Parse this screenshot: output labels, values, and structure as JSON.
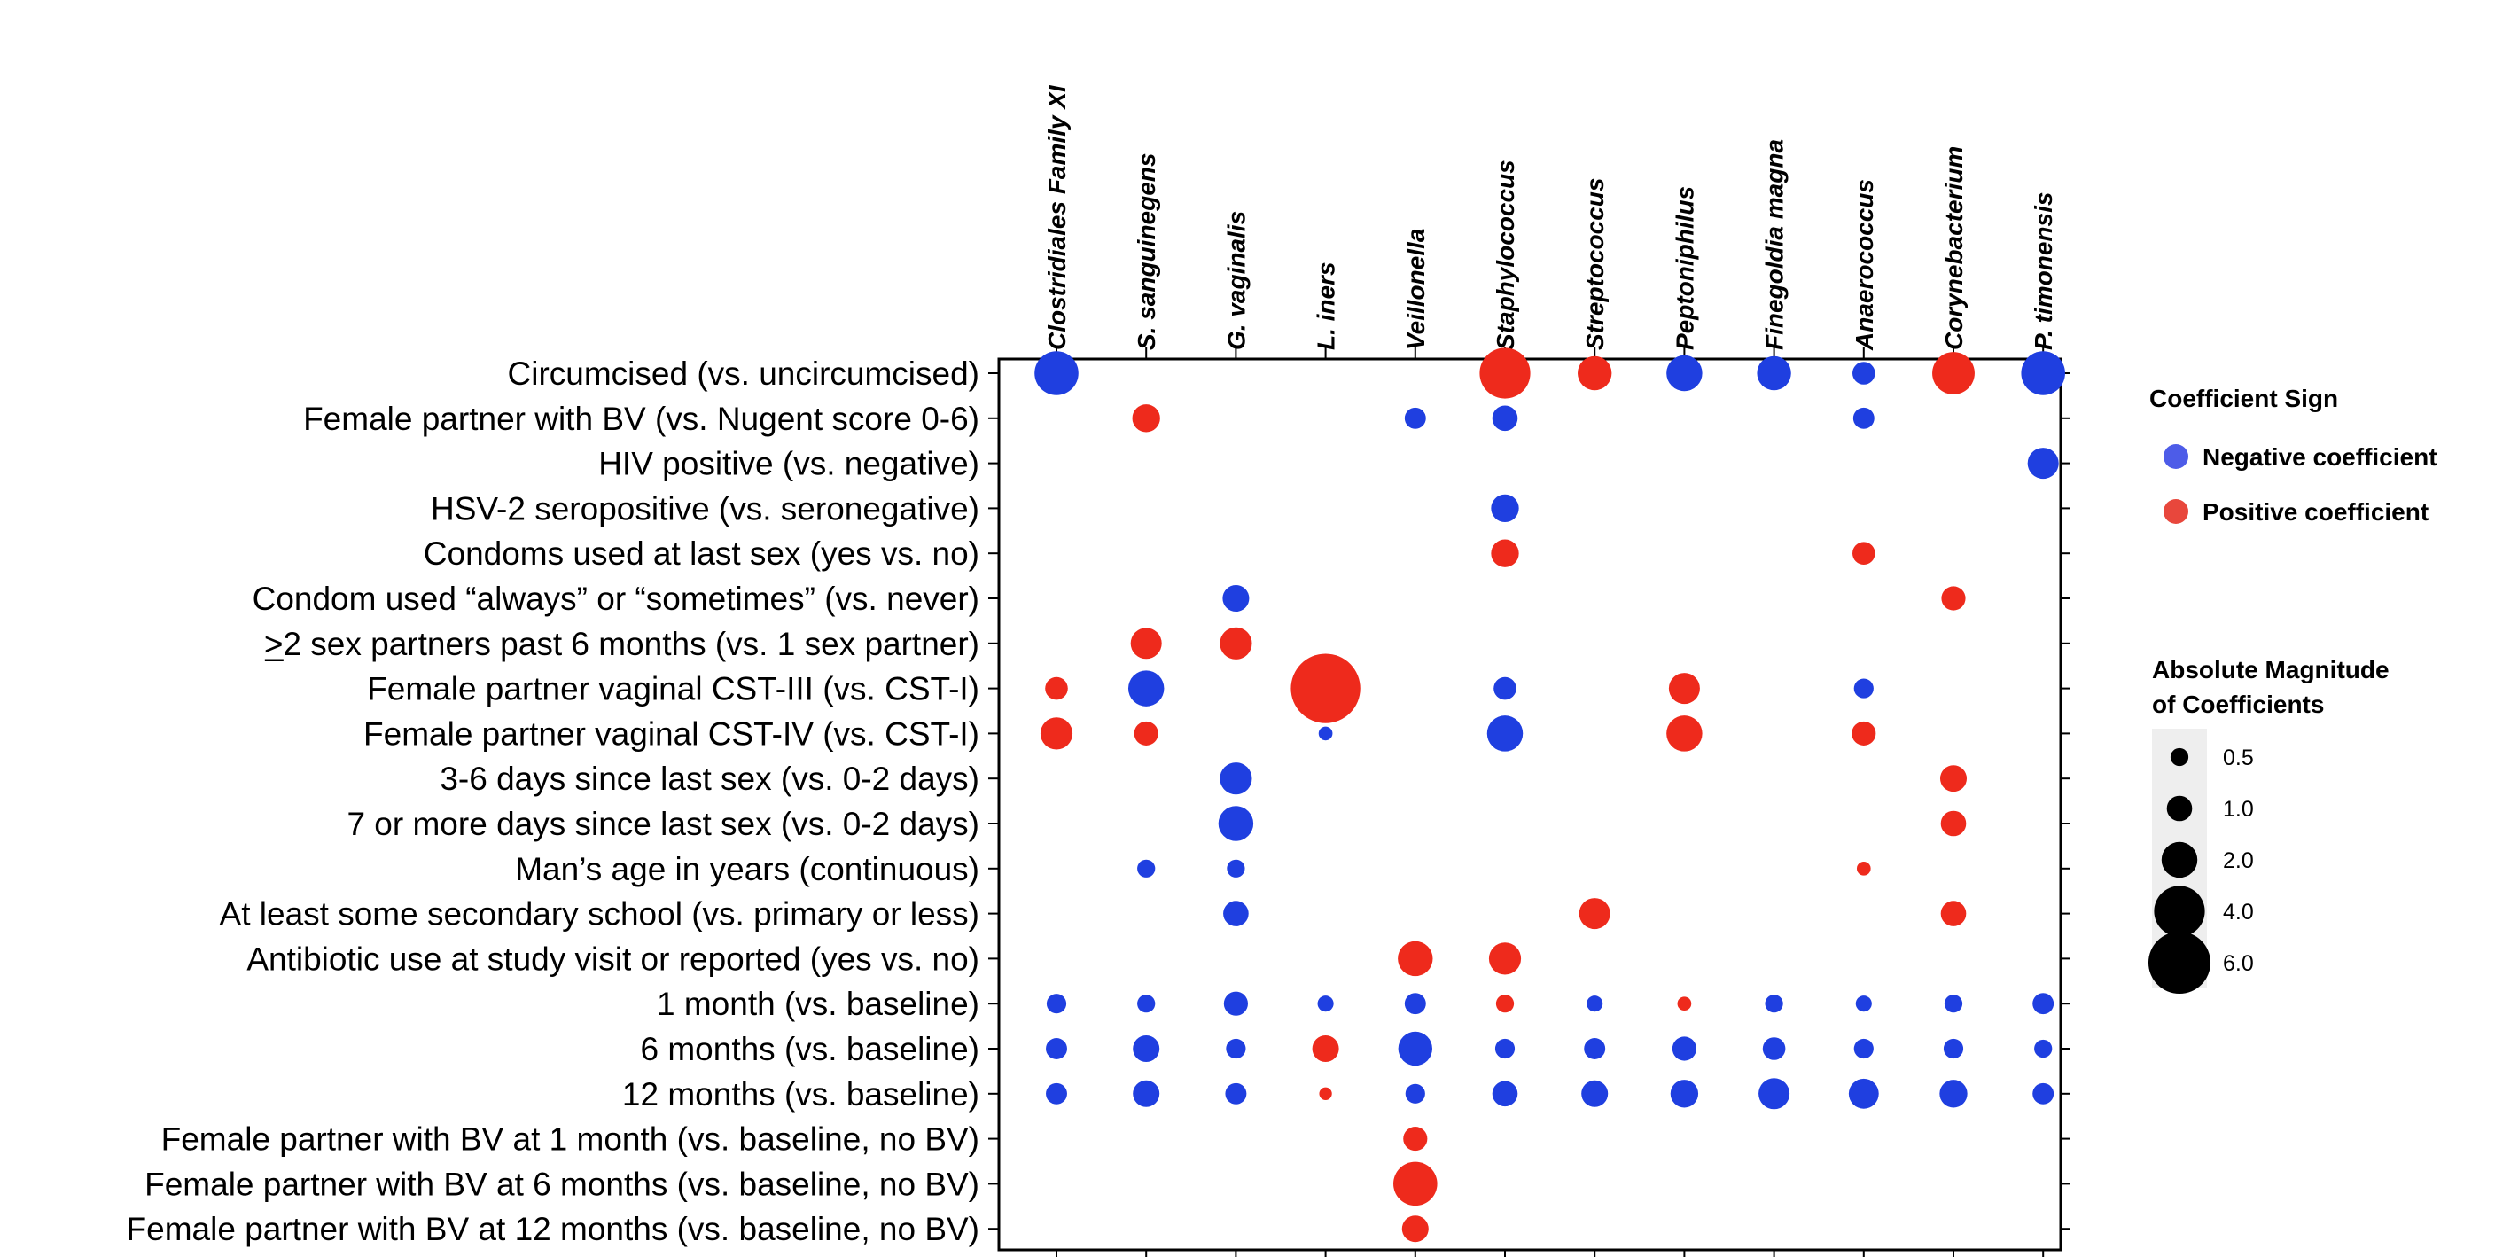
{
  "chart_data": {
    "type": "dot-matrix",
    "columns": [
      "Clostridiales Family XI",
      "S. sanguinegens",
      "G. vaginalis",
      "L. iners",
      "Veillonella",
      "Staphylococcus",
      "Streptococcus",
      "Peptoniphilus",
      "Finegoldia magna",
      "Anaerococcus",
      "Corynebacterium",
      "P. timonensis"
    ],
    "rows": [
      "Circumcised (vs. uncircumcised)",
      "Female partner with BV (vs. Nugent score 0-6)",
      "HIV positive (vs. negative)",
      "HSV-2 seropositive (vs. seronegative)",
      "Condoms used at last sex (yes vs. no)",
      "Condom used “always” or “sometimes” (vs. never)",
      ">2 sex partners past 6 months (vs. 1 sex partner)",
      "Female partner vaginal CST-III (vs. CST-I)",
      "Female partner vaginal CST-IV (vs. CST-I)",
      "3-6 days since last sex (vs. 0-2 days)",
      "7 or more days since last sex (vs. 0-2 days)",
      "Man’s age in years (continuous)",
      "At least some secondary school (vs. primary or less)",
      "Antibiotic use at study visit or reported (yes vs. no)",
      "1 month (vs. baseline)",
      "6 months (vs. baseline)",
      "12 months (vs. baseline)",
      "Female partner with BV at 1 month (vs. baseline, no BV)",
      "Female partner with BV at 6 months (vs. baseline, no BV)",
      "Female partner with BV at 12 months (vs. baseline, no BV)"
    ],
    "points": [
      {
        "row": 0,
        "col": 0,
        "value": -3.0
      },
      {
        "row": 0,
        "col": 5,
        "value": 4.0
      },
      {
        "row": 0,
        "col": 6,
        "value": 1.8
      },
      {
        "row": 0,
        "col": 7,
        "value": -2.0
      },
      {
        "row": 0,
        "col": 8,
        "value": -1.8
      },
      {
        "row": 0,
        "col": 9,
        "value": -0.8
      },
      {
        "row": 0,
        "col": 10,
        "value": 2.8
      },
      {
        "row": 0,
        "col": 11,
        "value": -3.0
      },
      {
        "row": 1,
        "col": 1,
        "value": 1.2
      },
      {
        "row": 1,
        "col": 4,
        "value": -0.7
      },
      {
        "row": 1,
        "col": 5,
        "value": -1.0
      },
      {
        "row": 1,
        "col": 9,
        "value": -0.7
      },
      {
        "row": 2,
        "col": 11,
        "value": -1.5
      },
      {
        "row": 3,
        "col": 5,
        "value": -1.2
      },
      {
        "row": 4,
        "col": 5,
        "value": 1.2
      },
      {
        "row": 4,
        "col": 9,
        "value": 0.8
      },
      {
        "row": 5,
        "col": 2,
        "value": -1.1
      },
      {
        "row": 5,
        "col": 10,
        "value": 0.9
      },
      {
        "row": 6,
        "col": 1,
        "value": 1.5
      },
      {
        "row": 6,
        "col": 2,
        "value": 1.6
      },
      {
        "row": 7,
        "col": 0,
        "value": 0.8
      },
      {
        "row": 7,
        "col": 1,
        "value": -2.0
      },
      {
        "row": 7,
        "col": 3,
        "value": 7.5
      },
      {
        "row": 7,
        "col": 5,
        "value": -0.8
      },
      {
        "row": 7,
        "col": 7,
        "value": 1.5
      },
      {
        "row": 7,
        "col": 9,
        "value": -0.6
      },
      {
        "row": 8,
        "col": 0,
        "value": 1.6
      },
      {
        "row": 8,
        "col": 1,
        "value": 0.9
      },
      {
        "row": 8,
        "col": 3,
        "value": -0.3
      },
      {
        "row": 8,
        "col": 5,
        "value": -2.0
      },
      {
        "row": 8,
        "col": 7,
        "value": 2.0
      },
      {
        "row": 8,
        "col": 9,
        "value": 0.9
      },
      {
        "row": 9,
        "col": 2,
        "value": -1.6
      },
      {
        "row": 9,
        "col": 10,
        "value": 1.1
      },
      {
        "row": 10,
        "col": 2,
        "value": -1.9
      },
      {
        "row": 10,
        "col": 10,
        "value": 1.0
      },
      {
        "row": 11,
        "col": 1,
        "value": -0.5
      },
      {
        "row": 11,
        "col": 2,
        "value": -0.5
      },
      {
        "row": 11,
        "col": 9,
        "value": 0.3
      },
      {
        "row": 12,
        "col": 2,
        "value": -1.0
      },
      {
        "row": 12,
        "col": 6,
        "value": 1.5
      },
      {
        "row": 12,
        "col": 10,
        "value": 1.0
      },
      {
        "row": 13,
        "col": 4,
        "value": 1.9
      },
      {
        "row": 13,
        "col": 5,
        "value": 1.6
      },
      {
        "row": 14,
        "col": 0,
        "value": -0.6
      },
      {
        "row": 14,
        "col": 1,
        "value": -0.5
      },
      {
        "row": 14,
        "col": 2,
        "value": -0.9
      },
      {
        "row": 14,
        "col": 3,
        "value": -0.4
      },
      {
        "row": 14,
        "col": 4,
        "value": -0.7
      },
      {
        "row": 14,
        "col": 5,
        "value": 0.5
      },
      {
        "row": 14,
        "col": 6,
        "value": -0.4
      },
      {
        "row": 14,
        "col": 7,
        "value": 0.3
      },
      {
        "row": 14,
        "col": 8,
        "value": -0.5
      },
      {
        "row": 14,
        "col": 9,
        "value": -0.4
      },
      {
        "row": 14,
        "col": 10,
        "value": -0.5
      },
      {
        "row": 14,
        "col": 11,
        "value": -0.7
      },
      {
        "row": 15,
        "col": 0,
        "value": -0.7
      },
      {
        "row": 15,
        "col": 1,
        "value": -1.1
      },
      {
        "row": 15,
        "col": 2,
        "value": -0.6
      },
      {
        "row": 15,
        "col": 3,
        "value": 1.1
      },
      {
        "row": 15,
        "col": 4,
        "value": -1.8
      },
      {
        "row": 15,
        "col": 5,
        "value": -0.6
      },
      {
        "row": 15,
        "col": 6,
        "value": -0.7
      },
      {
        "row": 15,
        "col": 7,
        "value": -0.9
      },
      {
        "row": 15,
        "col": 8,
        "value": -0.8
      },
      {
        "row": 15,
        "col": 9,
        "value": -0.6
      },
      {
        "row": 15,
        "col": 10,
        "value": -0.6
      },
      {
        "row": 15,
        "col": 11,
        "value": -0.5
      },
      {
        "row": 16,
        "col": 0,
        "value": -0.7
      },
      {
        "row": 16,
        "col": 1,
        "value": -1.1
      },
      {
        "row": 16,
        "col": 2,
        "value": -0.7
      },
      {
        "row": 16,
        "col": 3,
        "value": 0.25
      },
      {
        "row": 16,
        "col": 4,
        "value": -0.6
      },
      {
        "row": 16,
        "col": 5,
        "value": -1.0
      },
      {
        "row": 16,
        "col": 6,
        "value": -1.1
      },
      {
        "row": 16,
        "col": 7,
        "value": -1.2
      },
      {
        "row": 16,
        "col": 8,
        "value": -1.5
      },
      {
        "row": 16,
        "col": 9,
        "value": -1.4
      },
      {
        "row": 16,
        "col": 10,
        "value": -1.2
      },
      {
        "row": 16,
        "col": 11,
        "value": -0.7
      },
      {
        "row": 17,
        "col": 4,
        "value": 0.9
      },
      {
        "row": 18,
        "col": 4,
        "value": 3.0
      },
      {
        "row": 19,
        "col": 4,
        "value": 1.1
      }
    ],
    "sign_legend": {
      "title": "Coefficient Sign",
      "negative_label": "Negative coefficient",
      "positive_label": "Positive coefficient"
    },
    "size_legend": {
      "title_line1": "Absolute Magnitude",
      "title_line2": "of Coefficients",
      "sizes": [
        0.5,
        1.0,
        2.0,
        4.0,
        6.0
      ],
      "size_labels": [
        "0.5",
        "1.0",
        "2.0",
        "4.0",
        "6.0"
      ]
    },
    "colors": {
      "negative": "#1f3fe0",
      "positive": "#ee2a1c",
      "negative_legend": "#4d5ce8",
      "positive_legend": "#e8473c",
      "size_key": "#000000",
      "legend_bg": "#eeeeee"
    }
  }
}
